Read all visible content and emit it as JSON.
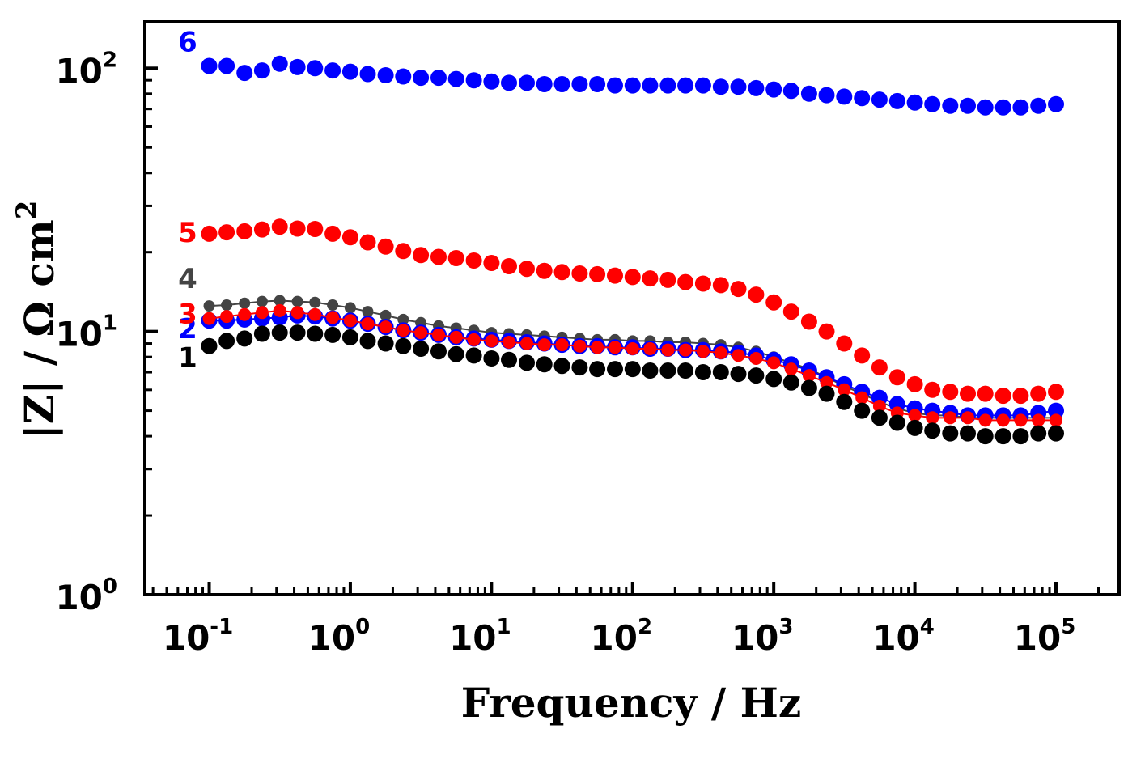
{
  "chart_data": {
    "type": "scatter",
    "xlabel": "Frequency / Hz",
    "ylabel": "|Z| / Ω cm",
    "ylabel_superscript": "2",
    "x_scale": "log",
    "y_scale": "log",
    "xlim": [
      0.035,
      280000
    ],
    "ylim": [
      1,
      150
    ],
    "x_ticks": [
      {
        "base": "10",
        "exp": "-1",
        "value": 0.1
      },
      {
        "base": "10",
        "exp": "0",
        "value": 1
      },
      {
        "base": "10",
        "exp": "1",
        "value": 10
      },
      {
        "base": "10",
        "exp": "2",
        "value": 100
      },
      {
        "base": "10",
        "exp": "3",
        "value": 1000
      },
      {
        "base": "10",
        "exp": "4",
        "value": 10000
      },
      {
        "base": "10",
        "exp": "5",
        "value": 100000
      }
    ],
    "y_ticks": [
      {
        "base": "10",
        "exp": "0",
        "value": 1
      },
      {
        "base": "10",
        "exp": "1",
        "value": 10
      },
      {
        "base": "10",
        "exp": "2",
        "value": 100
      }
    ],
    "grid": false,
    "legend": "none",
    "x": [
      0.1,
      0.133,
      0.178,
      0.237,
      0.316,
      0.422,
      0.562,
      0.75,
      1.0,
      1.33,
      1.78,
      2.37,
      3.16,
      4.22,
      5.62,
      7.5,
      10,
      13.3,
      17.8,
      23.7,
      31.6,
      42.2,
      56.2,
      75,
      100,
      133,
      178,
      237,
      316,
      422,
      562,
      750,
      1000,
      1330,
      1780,
      2370,
      3160,
      4220,
      5620,
      7500,
      10000,
      13300,
      17800,
      23700,
      31600,
      42200,
      56200,
      75000,
      100000
    ],
    "series": [
      {
        "label": "6",
        "color": "#0000ff",
        "marker_r": 10,
        "line": false,
        "values": [
          102,
          102,
          96,
          98,
          104,
          101,
          100,
          98,
          97,
          95,
          94,
          93,
          92,
          92,
          91,
          90,
          89,
          88,
          88,
          87,
          87,
          87,
          87,
          86,
          86,
          86,
          86,
          86,
          86,
          85,
          85,
          84,
          83,
          82,
          80,
          79,
          78,
          77,
          76,
          75,
          74,
          73,
          72,
          72,
          71,
          71,
          71,
          72,
          73
        ]
      },
      {
        "label": "5",
        "color": "#ff0000",
        "marker_r": 10,
        "line": false,
        "values": [
          23.5,
          23.8,
          24.0,
          24.4,
          25.0,
          24.6,
          24.5,
          23.5,
          22.8,
          21.8,
          21.0,
          20.2,
          19.5,
          19.2,
          19.0,
          18.6,
          18.2,
          17.7,
          17.3,
          17.0,
          16.8,
          16.6,
          16.5,
          16.3,
          16.1,
          15.9,
          15.7,
          15.4,
          15.2,
          15.0,
          14.5,
          13.8,
          12.9,
          11.9,
          10.9,
          10.0,
          9.0,
          8.1,
          7.3,
          6.7,
          6.3,
          6.0,
          5.9,
          5.8,
          5.8,
          5.7,
          5.7,
          5.8,
          5.9
        ]
      },
      {
        "label": "4",
        "color": "#444444",
        "marker_r": 7,
        "line": true,
        "values": [
          12.5,
          12.6,
          12.8,
          13.0,
          13.1,
          13.0,
          12.9,
          12.6,
          12.3,
          11.9,
          11.5,
          11.1,
          10.8,
          10.5,
          10.3,
          10.1,
          9.9,
          9.8,
          9.7,
          9.6,
          9.5,
          9.4,
          9.3,
          9.3,
          9.2,
          9.2,
          9.1,
          9.1,
          9.0,
          8.9,
          8.7,
          8.4,
          8.0,
          7.6,
          7.2,
          6.7,
          6.2,
          5.8,
          5.4,
          5.1,
          4.9,
          4.8,
          4.8,
          4.7,
          4.7,
          4.7,
          4.7,
          4.7,
          4.7
        ]
      },
      {
        "label": "2",
        "color": "#0000ff",
        "marker_r": 10,
        "line": true,
        "values": [
          11.0,
          11.0,
          11.1,
          11.2,
          11.3,
          11.5,
          11.4,
          11.2,
          11.0,
          10.7,
          10.4,
          10.1,
          9.9,
          9.7,
          9.5,
          9.4,
          9.3,
          9.2,
          9.1,
          9.0,
          8.9,
          8.8,
          8.8,
          8.7,
          8.7,
          8.6,
          8.6,
          8.5,
          8.5,
          8.4,
          8.3,
          8.1,
          7.8,
          7.5,
          7.1,
          6.7,
          6.3,
          5.9,
          5.6,
          5.3,
          5.1,
          5.0,
          4.9,
          4.8,
          4.8,
          4.8,
          4.8,
          4.9,
          5.0
        ]
      },
      {
        "label": "3",
        "color": "#ff0000",
        "marker_r": 8,
        "line": true,
        "values": [
          11.2,
          11.4,
          11.6,
          11.8,
          12.0,
          11.8,
          11.6,
          11.3,
          11.0,
          10.7,
          10.4,
          10.1,
          9.9,
          9.7,
          9.5,
          9.3,
          9.2,
          9.1,
          9.0,
          8.9,
          8.9,
          8.8,
          8.7,
          8.7,
          8.6,
          8.6,
          8.5,
          8.5,
          8.4,
          8.3,
          8.1,
          7.9,
          7.6,
          7.2,
          6.8,
          6.4,
          6.0,
          5.6,
          5.2,
          4.9,
          4.8,
          4.7,
          4.7,
          4.7,
          4.6,
          4.6,
          4.6,
          4.6,
          4.6
        ]
      },
      {
        "label": "1",
        "color": "#000000",
        "marker_r": 10,
        "line": false,
        "values": [
          8.8,
          9.2,
          9.4,
          9.8,
          9.9,
          9.9,
          9.8,
          9.7,
          9.5,
          9.2,
          9.0,
          8.8,
          8.6,
          8.4,
          8.2,
          8.1,
          7.9,
          7.8,
          7.6,
          7.5,
          7.4,
          7.3,
          7.2,
          7.2,
          7.2,
          7.1,
          7.1,
          7.1,
          7.0,
          7.0,
          6.9,
          6.8,
          6.6,
          6.4,
          6.1,
          5.8,
          5.4,
          5.0,
          4.7,
          4.5,
          4.3,
          4.2,
          4.1,
          4.1,
          4.0,
          4.0,
          4.0,
          4.1,
          4.1
        ]
      }
    ]
  }
}
